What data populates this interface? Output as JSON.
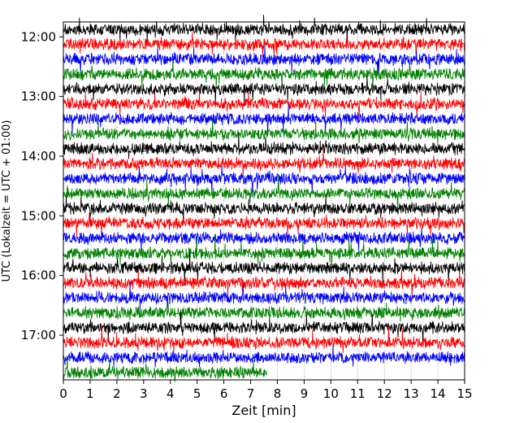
{
  "chart_data": {
    "type": "line",
    "title": "",
    "xlabel": "Zeit  [min]",
    "ylabel": "UTC (Lokalzeit = UTC + 01:00)",
    "xlim": [
      0,
      15
    ],
    "x_ticks": [
      "0",
      "1",
      "2",
      "3",
      "4",
      "5",
      "6",
      "7",
      "8",
      "9",
      "10",
      "11",
      "12",
      "13",
      "14",
      "15"
    ],
    "y_ticks": [
      "12:00",
      "13:00",
      "14:00",
      "15:00",
      "16:00",
      "17:00"
    ],
    "start_time": "11:45",
    "end_time": "17:45",
    "row_interval_min": 15,
    "rows": 24,
    "last_row_length_min": 7.6,
    "series_colors": [
      "#000000",
      "#ff0000",
      "#0000ff",
      "#008000"
    ],
    "grid": "vertical dotted"
  }
}
